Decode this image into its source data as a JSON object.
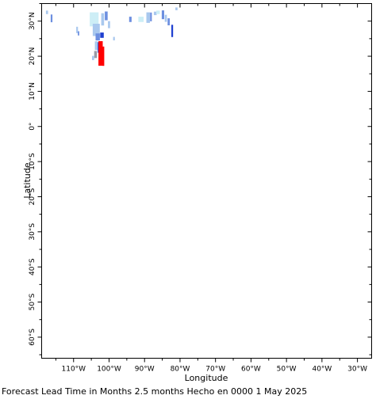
{
  "chart_data": {
    "type": "heatmap",
    "xlabel": "Longitude",
    "ylabel": "Latitude",
    "xlim": [
      -119,
      -26
    ],
    "ylim": [
      -66,
      35
    ],
    "x_ticks": [
      {
        "value": -110,
        "label": "110°W"
      },
      {
        "value": -100,
        "label": "100°W"
      },
      {
        "value": -90,
        "label": "90°W"
      },
      {
        "value": -80,
        "label": "80°W"
      },
      {
        "value": -70,
        "label": "70°W"
      },
      {
        "value": -60,
        "label": "60°W"
      },
      {
        "value": -50,
        "label": "50°W"
      },
      {
        "value": -40,
        "label": "40°W"
      },
      {
        "value": -30,
        "label": "30°W"
      }
    ],
    "y_ticks": [
      {
        "value": 30,
        "label": "30°N"
      },
      {
        "value": 20,
        "label": "20°N"
      },
      {
        "value": 10,
        "label": "10°N"
      },
      {
        "value": 0,
        "label": "0°"
      },
      {
        "value": -10,
        "label": "10°S"
      },
      {
        "value": -20,
        "label": "20°S"
      },
      {
        "value": -30,
        "label": "30°S"
      },
      {
        "value": -40,
        "label": "40°S"
      },
      {
        "value": -50,
        "label": "50°S"
      },
      {
        "value": -60,
        "label": "60°S"
      }
    ],
    "colors": {
      "pale_cyan": "#cdeef6",
      "light_blue": "#a9c8ee",
      "mid_blue": "#6d8fe0",
      "dark_blue": "#1f3fd0",
      "gray": "#9a9aa6",
      "red": "#ff0000"
    },
    "cells": [
      {
        "lon": -117.5,
        "lat": 32.5,
        "w": 0.6,
        "h": 1.0,
        "c": "light_blue"
      },
      {
        "lon": -116.2,
        "lat": 30.8,
        "w": 0.5,
        "h": 2.2,
        "c": "mid_blue"
      },
      {
        "lon": -109.0,
        "lat": 27.5,
        "w": 0.5,
        "h": 1.8,
        "c": "light_blue"
      },
      {
        "lon": -108.6,
        "lat": 26.5,
        "w": 0.4,
        "h": 1.2,
        "c": "mid_blue"
      },
      {
        "lon": -104.2,
        "lat": 30.5,
        "w": 2.5,
        "h": 4.0,
        "c": "pale_cyan"
      },
      {
        "lon": -103.6,
        "lat": 27.5,
        "w": 2.0,
        "h": 3.5,
        "c": "light_blue"
      },
      {
        "lon": -101.8,
        "lat": 30.5,
        "w": 0.8,
        "h": 3.5,
        "c": "light_blue"
      },
      {
        "lon": -100.8,
        "lat": 31.5,
        "w": 0.8,
        "h": 2.5,
        "c": "mid_blue"
      },
      {
        "lon": -100.0,
        "lat": 29.0,
        "w": 0.6,
        "h": 2.0,
        "c": "light_blue"
      },
      {
        "lon": -103.2,
        "lat": 25.5,
        "w": 1.2,
        "h": 2.0,
        "c": "mid_blue"
      },
      {
        "lon": -102.0,
        "lat": 26.0,
        "w": 1.0,
        "h": 1.5,
        "c": "dark_blue"
      },
      {
        "lon": -103.6,
        "lat": 23.0,
        "w": 0.8,
        "h": 2.5,
        "c": "light_blue"
      },
      {
        "lon": -103.8,
        "lat": 20.5,
        "w": 0.8,
        "h": 2.0,
        "c": "gray"
      },
      {
        "lon": -102.9,
        "lat": 22.5,
        "w": 0.6,
        "h": 3.0,
        "c": "dark_blue"
      },
      {
        "lon": -102.4,
        "lat": 20.8,
        "w": 1.2,
        "h": 7.0,
        "c": "red"
      },
      {
        "lon": -101.6,
        "lat": 20.0,
        "w": 0.5,
        "h": 5.5,
        "c": "red"
      },
      {
        "lon": -104.5,
        "lat": 19.5,
        "w": 0.6,
        "h": 1.2,
        "c": "light_blue"
      },
      {
        "lon": -98.6,
        "lat": 25.0,
        "w": 0.5,
        "h": 1.0,
        "c": "light_blue"
      },
      {
        "lon": -94.0,
        "lat": 30.5,
        "w": 0.7,
        "h": 1.5,
        "c": "mid_blue"
      },
      {
        "lon": -91.0,
        "lat": 30.5,
        "w": 1.5,
        "h": 1.5,
        "c": "pale_cyan"
      },
      {
        "lon": -89.0,
        "lat": 31.0,
        "w": 1.0,
        "h": 3.0,
        "c": "light_blue"
      },
      {
        "lon": -88.2,
        "lat": 31.2,
        "w": 0.5,
        "h": 2.5,
        "c": "mid_blue"
      },
      {
        "lon": -87.0,
        "lat": 32.2,
        "w": 0.8,
        "h": 1.0,
        "c": "light_blue"
      },
      {
        "lon": -86.2,
        "lat": 32.5,
        "w": 1.0,
        "h": 1.0,
        "c": "pale_cyan"
      },
      {
        "lon": -84.8,
        "lat": 31.8,
        "w": 0.7,
        "h": 2.5,
        "c": "mid_blue"
      },
      {
        "lon": -84.0,
        "lat": 30.8,
        "w": 0.6,
        "h": 2.0,
        "c": "light_blue"
      },
      {
        "lon": -83.2,
        "lat": 29.8,
        "w": 0.6,
        "h": 2.0,
        "c": "mid_blue"
      },
      {
        "lon": -82.2,
        "lat": 27.2,
        "w": 0.5,
        "h": 3.5,
        "c": "dark_blue"
      },
      {
        "lon": -81.0,
        "lat": 33.5,
        "w": 0.6,
        "h": 0.8,
        "c": "light_blue"
      }
    ]
  },
  "caption": "Forecast Lead Time in Months 2.5 months Hecho en 0000 1 May 2025"
}
